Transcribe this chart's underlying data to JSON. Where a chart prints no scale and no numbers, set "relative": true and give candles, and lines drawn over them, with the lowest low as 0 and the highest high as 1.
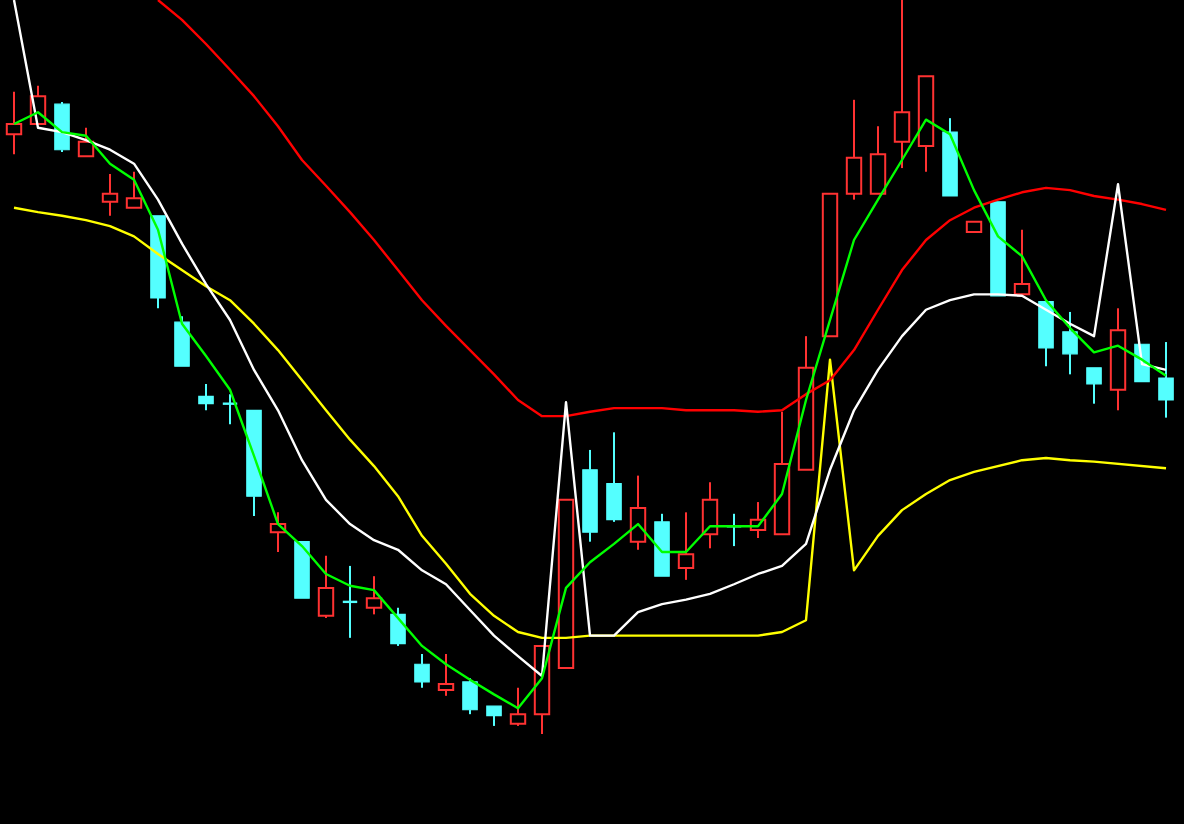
{
  "chart_data": {
    "type": "candlestick",
    "relative": true,
    "categories": [
      null,
      null,
      null,
      null,
      null,
      null,
      null,
      null,
      null,
      null,
      null,
      null,
      null,
      null,
      null,
      null,
      null,
      null,
      null,
      null,
      null,
      null,
      null,
      null,
      null,
      null,
      null,
      null,
      null,
      null,
      null,
      null,
      null,
      null,
      null,
      null,
      null,
      null,
      null,
      null,
      null,
      null,
      null,
      null,
      null,
      null,
      null,
      null,
      null
    ],
    "ohlc": [
      [
        0.817,
        0.875,
        0.79,
        0.831
      ],
      [
        0.831,
        0.883,
        0.831,
        0.869
      ],
      [
        0.858,
        0.861,
        0.793,
        0.796
      ],
      [
        0.787,
        0.826,
        0.787,
        0.807
      ],
      [
        0.725,
        0.763,
        0.706,
        0.736
      ],
      [
        0.717,
        0.766,
        0.717,
        0.73
      ],
      [
        0.706,
        0.706,
        0.58,
        0.594
      ],
      [
        0.561,
        0.569,
        0.501,
        0.501
      ],
      [
        0.46,
        0.477,
        0.441,
        0.45
      ],
      [
        0.45,
        0.463,
        0.422,
        0.45
      ],
      [
        0.441,
        0.441,
        0.297,
        0.324
      ],
      [
        0.275,
        0.302,
        0.248,
        0.286
      ],
      [
        0.262,
        0.262,
        0.185,
        0.185
      ],
      [
        0.161,
        0.243,
        0.158,
        0.199
      ],
      [
        0.18,
        0.229,
        0.131,
        0.18
      ],
      [
        0.172,
        0.215,
        0.163,
        0.185
      ],
      [
        0.163,
        0.172,
        0.12,
        0.123
      ],
      [
        0.095,
        0.109,
        0.063,
        0.071
      ],
      [
        0.06,
        0.109,
        0.052,
        0.068
      ],
      [
        0.071,
        0.076,
        0.027,
        0.033
      ],
      [
        0.038,
        0.038,
        0.011,
        0.025
      ],
      [
        0.014,
        0.063,
        0.011,
        0.027
      ],
      [
        0.027,
        0.12,
        0,
        0.12
      ],
      [
        0.09,
        0.319,
        0.09,
        0.319
      ],
      [
        0.36,
        0.387,
        0.262,
        0.275
      ],
      [
        0.341,
        0.411,
        0.289,
        0.292
      ],
      [
        0.262,
        0.352,
        0.251,
        0.308
      ],
      [
        0.289,
        0.3,
        0.215,
        0.215
      ],
      [
        0.226,
        0.302,
        0.21,
        0.245
      ],
      [
        0.272,
        0.343,
        0.253,
        0.319
      ],
      [
        0.283,
        0.3,
        0.256,
        0.283
      ],
      [
        0.278,
        0.316,
        0.267,
        0.292
      ],
      [
        0.272,
        0.439,
        0.272,
        0.368
      ],
      [
        0.36,
        0.542,
        0.36,
        0.499
      ],
      [
        0.542,
        0.736,
        0.542,
        0.736
      ],
      [
        0.736,
        0.864,
        0.728,
        0.785
      ],
      [
        0.736,
        0.828,
        0.736,
        0.79
      ],
      [
        0.807,
        1,
        0.771,
        0.847
      ],
      [
        0.801,
        0.896,
        0.766,
        0.896
      ],
      [
        0.82,
        0.839,
        0.733,
        0.733
      ],
      [
        0.684,
        0.698,
        0.684,
        0.698
      ],
      [
        0.725,
        0.725,
        0.597,
        0.597
      ],
      [
        0.599,
        0.687,
        0.599,
        0.613
      ],
      [
        0.589,
        0.589,
        0.501,
        0.526
      ],
      [
        0.548,
        0.575,
        0.49,
        0.518
      ],
      [
        0.499,
        0.499,
        0.45,
        0.477
      ],
      [
        0.469,
        0.58,
        0.441,
        0.55
      ],
      [
        0.531,
        0.531,
        0.48,
        0.48
      ],
      [
        0.485,
        0.534,
        0.431,
        0.455
      ]
    ],
    "colors": [
      "#ff3232",
      "#ff3232",
      "#54ffff",
      "#ff3232",
      "#ff3232",
      "#ff3232",
      "#54ffff",
      "#54ffff",
      "#54ffff",
      "#54ffff",
      "#54ffff",
      "#ff3232",
      "#54ffff",
      "#ff3232",
      "#54ffff",
      "#ff3232",
      "#54ffff",
      "#54ffff",
      "#ff3232",
      "#54ffff",
      "#54ffff",
      "#ff3232",
      "#ff3232",
      "#ff3232",
      "#54ffff",
      "#54ffff",
      "#ff3232",
      "#54ffff",
      "#ff3232",
      "#ff3232",
      "#54ffff",
      "#ff3232",
      "#ff3232",
      "#ff3232",
      "#ff3232",
      "#ff3232",
      "#ff3232",
      "#ff3232",
      "#ff3232",
      "#54ffff",
      "#ff3232",
      "#54ffff",
      "#ff3232",
      "#54ffff",
      "#54ffff",
      "#54ffff",
      "#ff3232",
      "#54ffff",
      "#54ffff"
    ],
    "series": [
      {
        "type": "line",
        "color": "#ffff00",
        "values": [
          0.717,
          0.711,
          0.706,
          0.7,
          0.692,
          0.678,
          0.654,
          0.632,
          0.61,
          0.591,
          0.559,
          0.523,
          0.482,
          0.441,
          0.401,
          0.365,
          0.324,
          0.27,
          0.232,
          0.191,
          0.161,
          0.139,
          0.131,
          0.131,
          0.134,
          0.134,
          0.134,
          0.134,
          0.134,
          0.134,
          0.134,
          0.134,
          0.139,
          0.155,
          0.51,
          0.223,
          0.27,
          0.305,
          0.327,
          0.346,
          0.357,
          0.365,
          0.373,
          0.376,
          0.373,
          0.371,
          0.368,
          0.365,
          0.362
        ]
      },
      {
        "type": "line",
        "color": "#ff0000",
        "values": [
          null,
          null,
          null,
          null,
          null,
          null,
          1,
          0.973,
          0.94,
          0.905,
          0.869,
          0.828,
          0.782,
          0.747,
          0.711,
          0.673,
          0.632,
          0.591,
          0.556,
          0.523,
          0.49,
          0.455,
          0.433,
          0.433,
          0.439,
          0.444,
          0.444,
          0.444,
          0.441,
          0.441,
          0.441,
          0.439,
          0.441,
          0.463,
          0.482,
          0.523,
          0.578,
          0.632,
          0.673,
          0.7,
          0.717,
          0.728,
          0.738,
          0.744,
          0.741,
          0.733,
          0.728,
          0.722,
          0.714
        ]
      },
      {
        "type": "line",
        "color": "#ffffff",
        "values": [
          1,
          0.826,
          0.82,
          0.809,
          0.796,
          0.777,
          0.728,
          0.668,
          0.613,
          0.564,
          0.496,
          0.441,
          0.373,
          0.319,
          0.286,
          0.264,
          0.251,
          0.223,
          0.204,
          0.169,
          0.134,
          0.106,
          0.079,
          0.452,
          0.134,
          0.134,
          0.166,
          0.177,
          0.183,
          0.191,
          0.204,
          0.218,
          0.229,
          0.259,
          0.36,
          0.441,
          0.496,
          0.542,
          0.578,
          0.591,
          0.599,
          0.599,
          0.597,
          0.578,
          0.559,
          0.542,
          0.749,
          0.504,
          0.496
        ]
      },
      {
        "type": "line",
        "color": "#00ff00",
        "values": [
          0.831,
          0.847,
          0.82,
          0.815,
          0.777,
          0.755,
          0.687,
          0.559,
          0.515,
          0.469,
          0.379,
          0.286,
          0.256,
          0.218,
          0.202,
          0.196,
          0.158,
          0.12,
          0.095,
          0.074,
          0.054,
          0.035,
          0.076,
          0.199,
          0.234,
          0.259,
          0.286,
          0.248,
          0.248,
          0.283,
          0.283,
          0.283,
          0.327,
          0.455,
          0.564,
          0.673,
          0.728,
          0.782,
          0.837,
          0.817,
          0.741,
          0.678,
          0.651,
          0.591,
          0.553,
          0.52,
          0.529,
          0.51,
          0.488
        ]
      }
    ]
  }
}
